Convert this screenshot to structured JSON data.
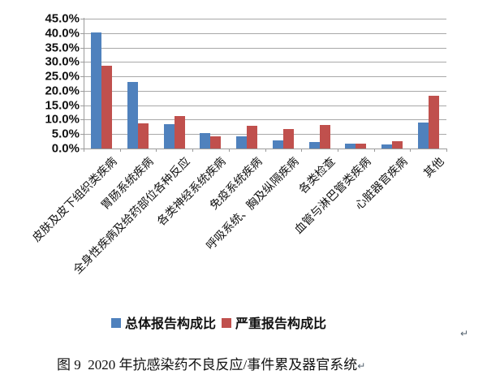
{
  "figure": {
    "caption": "图 9  2020 年抗感染药不良反应/事件累及器官系统",
    "paragraph_mark": "↵",
    "stray_paragraph_mark": "↵"
  },
  "chart_data": {
    "type": "bar",
    "title": "",
    "xlabel": "",
    "ylabel": "",
    "categories": [
      "皮肤及皮下组织类疾病",
      "胃肠系统疾病",
      "全身性疾病及给药部位各种反应",
      "各类神经系统疾病",
      "免疫系统疾病",
      "呼吸系统、胸及纵隔疾病",
      "各类检查",
      "血管与淋巴管类疾病",
      "心脏器官疾病",
      "其他"
    ],
    "series": [
      {
        "name": "总体报告构成比",
        "color": "#4F81BD",
        "values": [
          40.3,
          23.2,
          8.5,
          5.4,
          4.2,
          2.7,
          2.2,
          1.6,
          1.4,
          8.9
        ]
      },
      {
        "name": "严重报告构成比",
        "color": "#C0504D",
        "values": [
          28.8,
          8.6,
          11.2,
          4.1,
          7.8,
          6.7,
          8.2,
          1.8,
          2.4,
          18.3
        ]
      }
    ],
    "ylim": [
      0,
      45
    ],
    "ytick_step": 5,
    "ytick_labels": [
      "0.0%",
      "5.0%",
      "10.0%",
      "15.0%",
      "20.0%",
      "25.0%",
      "30.0%",
      "35.0%",
      "40.0%",
      "45.0%"
    ],
    "grid": true,
    "legend_position": "bottom",
    "axis_color": "#9b9b9b",
    "gridline_color": "#a8a8a8"
  }
}
